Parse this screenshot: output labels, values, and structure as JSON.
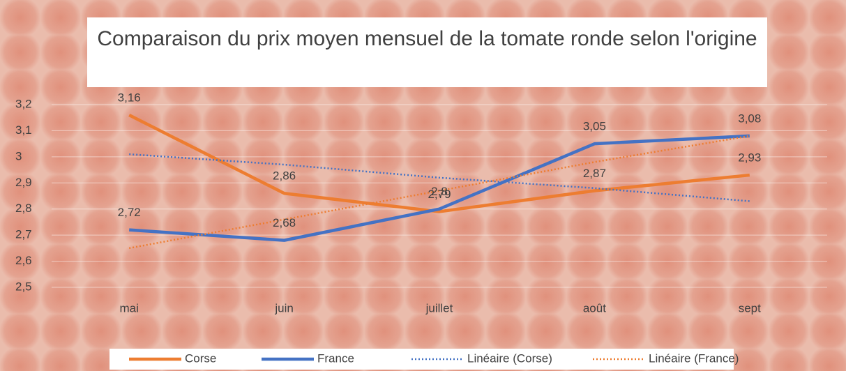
{
  "chart_data": {
    "type": "line",
    "title": "Comparaison du prix moyen mensuel de la tomate ronde selon l'origine",
    "categories": [
      "mai",
      "juin",
      "juillet",
      "août",
      "sept"
    ],
    "series": [
      {
        "name": "Corse",
        "color": "#ed7d31",
        "style": "solid",
        "values": [
          3.16,
          2.86,
          2.79,
          2.87,
          2.93
        ],
        "value_labels": [
          "3,16",
          "2,86",
          "2,79",
          "2,87",
          "2,93"
        ]
      },
      {
        "name": "France",
        "color": "#4472c4",
        "style": "solid",
        "values": [
          2.72,
          2.68,
          2.8,
          3.05,
          3.08
        ],
        "value_labels": [
          "2,72",
          "2,68",
          "2,8",
          "3,05",
          "3,08"
        ]
      },
      {
        "name": "Linéaire (Corse)",
        "color": "#4472c4",
        "style": "dotted",
        "values": [
          3.01,
          2.97,
          2.92,
          2.88,
          2.83
        ]
      },
      {
        "name": "Linéaire (France)",
        "color": "#ed7d31",
        "style": "dotted",
        "values": [
          2.65,
          2.76,
          2.87,
          2.98,
          3.08
        ]
      }
    ],
    "ylim": [
      2.5,
      3.2
    ],
    "yticks": [
      {
        "value": 2.5,
        "label": "2,5"
      },
      {
        "value": 2.6,
        "label": "2,6"
      },
      {
        "value": 2.7,
        "label": "2,7"
      },
      {
        "value": 2.8,
        "label": "2,8"
      },
      {
        "value": 2.9,
        "label": "2,9"
      },
      3,
      {
        "value": 3.1,
        "label": "3,1"
      },
      {
        "value": 3.2,
        "label": "3,2"
      }
    ],
    "grid": true,
    "legend": "bottom"
  }
}
